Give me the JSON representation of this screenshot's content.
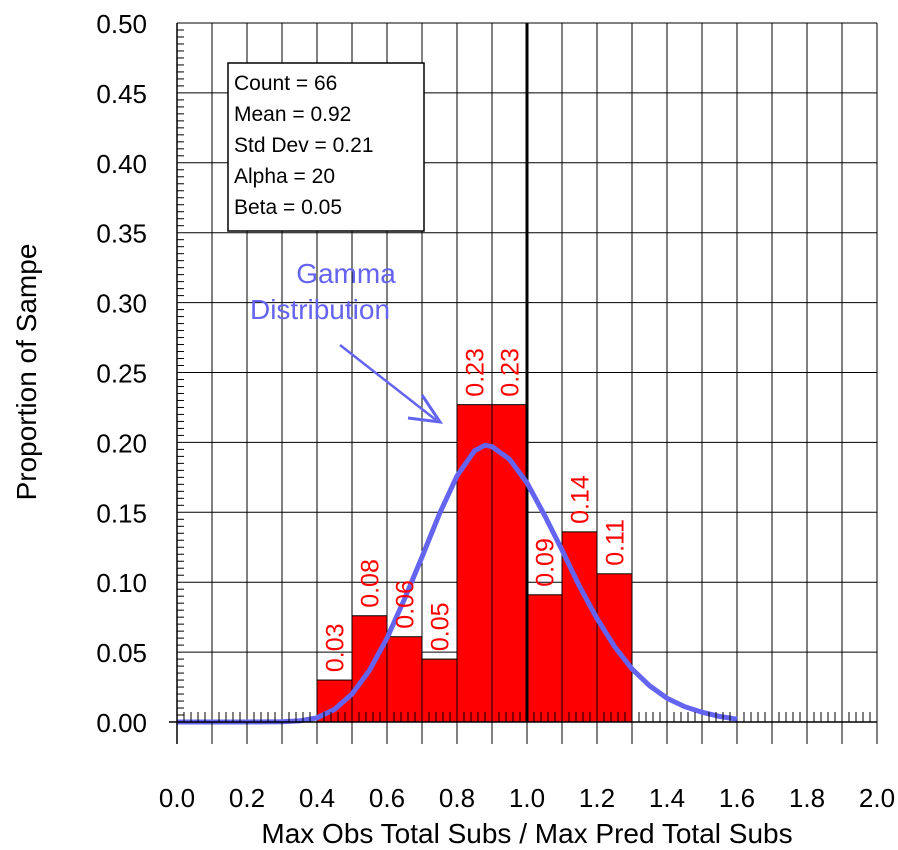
{
  "chart_data": {
    "type": "bar",
    "xlabel": "Max Obs Total Subs / Max Pred Total Subs",
    "ylabel": "Proportion of Sampe",
    "xlim": [
      0.0,
      2.0
    ],
    "ylim": [
      0.0,
      0.5
    ],
    "x_ticks": [
      "0.0",
      "0.2",
      "0.4",
      "0.6",
      "0.8",
      "1.0",
      "1.2",
      "1.4",
      "1.6",
      "1.8",
      "2.0"
    ],
    "y_ticks": [
      "0.00",
      "0.05",
      "0.10",
      "0.15",
      "0.20",
      "0.25",
      "0.30",
      "0.35",
      "0.40",
      "0.45",
      "0.50"
    ],
    "grid": true,
    "bin_width": 0.1,
    "bins": [
      {
        "start": 0.4,
        "value": 0.03,
        "label": "0.03"
      },
      {
        "start": 0.5,
        "value": 0.076,
        "label": "0.08"
      },
      {
        "start": 0.6,
        "value": 0.061,
        "label": "0.06"
      },
      {
        "start": 0.7,
        "value": 0.045,
        "label": "0.05"
      },
      {
        "start": 0.8,
        "value": 0.227,
        "label": "0.23"
      },
      {
        "start": 0.9,
        "value": 0.227,
        "label": "0.23"
      },
      {
        "start": 1.0,
        "value": 0.091,
        "label": "0.09"
      },
      {
        "start": 1.1,
        "value": 0.136,
        "label": "0.14"
      },
      {
        "start": 1.2,
        "value": 0.106,
        "label": "0.11"
      }
    ],
    "reference_line_x": 1.0,
    "gamma_curve": {
      "x": [
        0.0,
        0.2,
        0.3,
        0.35,
        0.4,
        0.45,
        0.5,
        0.55,
        0.6,
        0.65,
        0.7,
        0.75,
        0.8,
        0.85,
        0.88,
        0.9,
        0.95,
        1.0,
        1.05,
        1.1,
        1.15,
        1.2,
        1.25,
        1.3,
        1.35,
        1.4,
        1.45,
        1.5,
        1.55,
        1.6
      ],
      "y": [
        0.0,
        0.0,
        0.0002,
        0.0008,
        0.003,
        0.009,
        0.02,
        0.037,
        0.06,
        0.088,
        0.118,
        0.149,
        0.176,
        0.194,
        0.198,
        0.197,
        0.188,
        0.171,
        0.148,
        0.123,
        0.097,
        0.074,
        0.054,
        0.038,
        0.026,
        0.017,
        0.011,
        0.007,
        0.004,
        0.002
      ]
    },
    "stats_box": [
      "Count = 66",
      "Mean = 0.92",
      "Std Dev = 0.21",
      "Alpha = 20",
      "Beta = 0.05"
    ],
    "annotation": [
      "Gamma",
      "Distribution"
    ],
    "colors": {
      "bar": "#ff0000",
      "bar_label": "#ff0000",
      "curve": "#6464f0",
      "grid": "#000000",
      "reference_line": "#000000"
    }
  }
}
